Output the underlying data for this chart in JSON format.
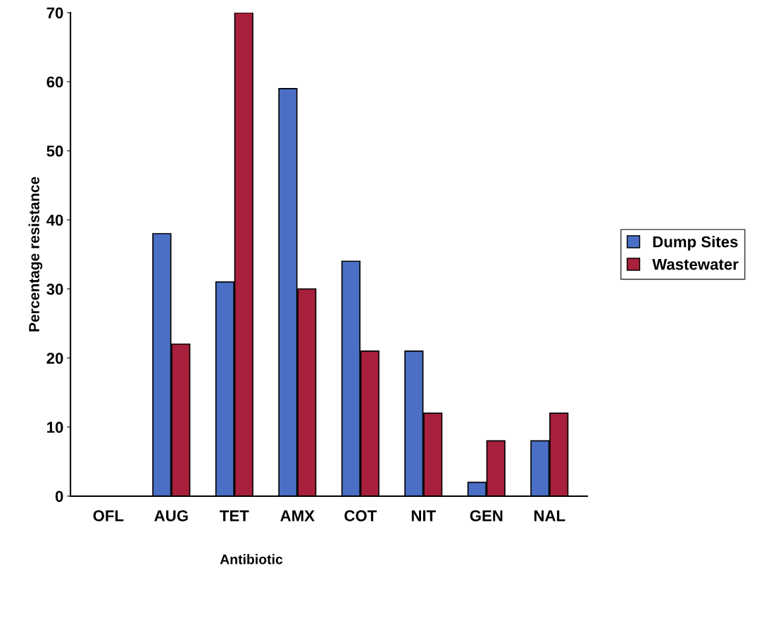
{
  "chart_data": {
    "type": "bar",
    "xlabel": "Antibiotic",
    "ylabel": "Percentage resistance",
    "categories": [
      "OFL",
      "AUG",
      "TET",
      "AMX",
      "COT",
      "NIT",
      "GEN",
      "NAL"
    ],
    "series": [
      {
        "name": "Dump Sites",
        "color": "#4a6fc4",
        "values": [
          0,
          38,
          31,
          59,
          34,
          21,
          2,
          8
        ]
      },
      {
        "name": "Wastewater",
        "color": "#a8203c",
        "values": [
          0,
          22,
          70,
          30,
          21,
          12,
          8,
          12
        ]
      }
    ],
    "ylim": [
      0,
      70
    ],
    "yticks": [
      0,
      10,
      20,
      30,
      40,
      50,
      60,
      70
    ],
    "grid": false,
    "legend": "right"
  }
}
